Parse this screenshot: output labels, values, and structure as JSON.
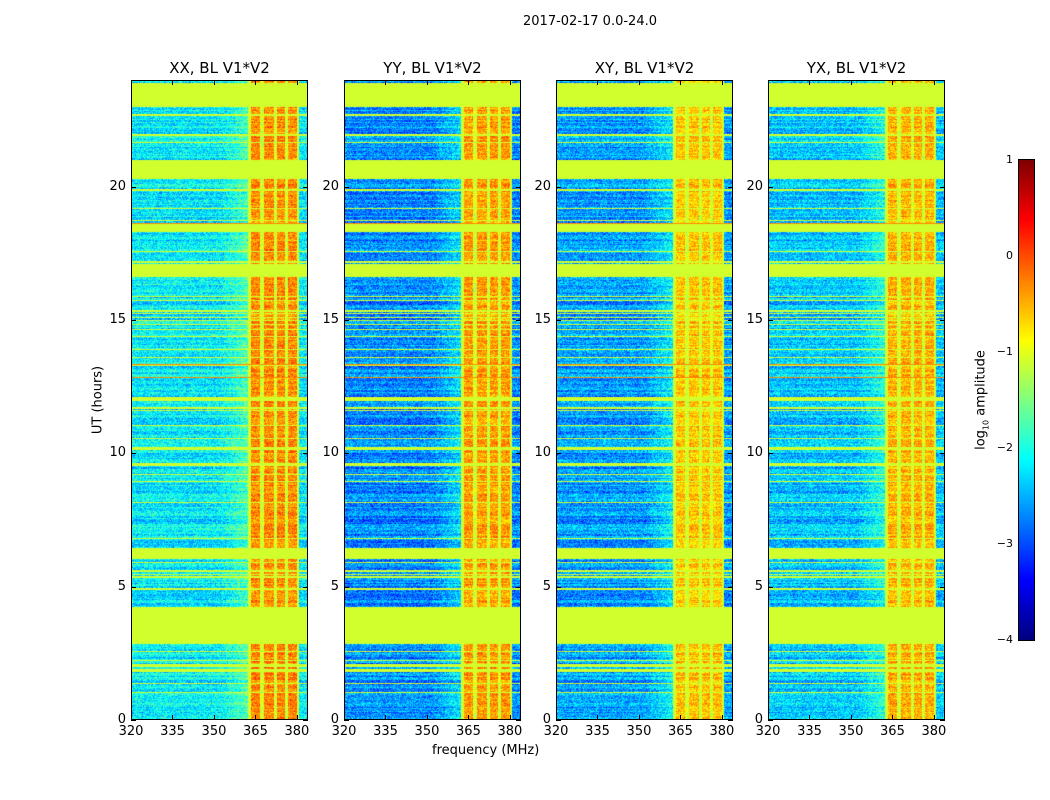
{
  "chart_data": {
    "type": "heatmap",
    "title": "2017-02-17 0.0-24.0",
    "xlabel": "frequency (MHz)",
    "ylabel": "UT (hours)",
    "xlim": [
      320,
      384
    ],
    "ylim": [
      0,
      24
    ],
    "xticks": [
      "320",
      "335",
      "350",
      "365",
      "380"
    ],
    "xtick_values": [
      320,
      335,
      350,
      365,
      380
    ],
    "yticks": [
      "0",
      "5",
      "10",
      "15",
      "20"
    ],
    "ytick_values": [
      0,
      5,
      10,
      15,
      20
    ],
    "panels": [
      {
        "title": "XX, BL V1*V2",
        "base_level": -2.2,
        "rfi_level": -0.3
      },
      {
        "title": "YY, BL V1*V2",
        "base_level": -2.7,
        "rfi_level": -0.4
      },
      {
        "title": "XY, BL V1*V2",
        "base_level": -2.6,
        "rfi_level": -0.6
      },
      {
        "title": "YX, BL V1*V2",
        "base_level": -2.4,
        "rfi_level": -0.5
      }
    ],
    "flagged_value": -1.1,
    "flagged_time_ranges_hours": [
      [
        2.8,
        4.2
      ],
      [
        6.0,
        6.4
      ],
      [
        16.6,
        17.1
      ],
      [
        18.3,
        18.6
      ],
      [
        20.3,
        21.0
      ],
      [
        23.0,
        23.9
      ]
    ],
    "rfi_band_mhz": [
      363,
      381
    ],
    "rfi_gap_columns_mhz": [
      367.5,
      372.5,
      376.5
    ],
    "colorbar": {
      "label": "log10 amplitude",
      "label_main": "log",
      "label_sub": "10",
      "label_rest": " amplitude",
      "clim": [
        -4,
        1
      ],
      "ticks": [
        "1",
        "0",
        "−1",
        "−2",
        "−3",
        "−4"
      ],
      "tick_values": [
        1,
        0,
        -1,
        -2,
        -3,
        -4
      ],
      "colormap": "jet"
    }
  }
}
